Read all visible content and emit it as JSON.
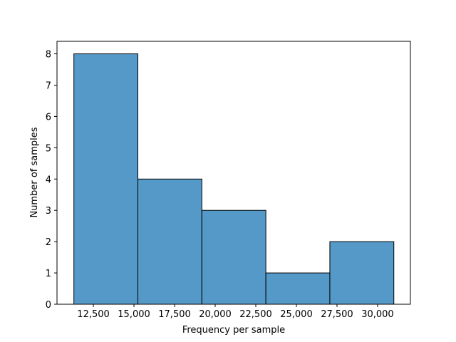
{
  "chart_data": {
    "type": "histogram",
    "xlabel": "Frequency per sample",
    "ylabel": "Number of samples",
    "bins": [
      11300,
      15240,
      19180,
      23120,
      27060,
      31000
    ],
    "values": [
      8,
      4,
      3,
      1,
      2
    ],
    "color": "#5599c8",
    "xlim": [
      10260,
      32020
    ],
    "ylim": [
      0,
      8.4
    ],
    "xticks": [
      {
        "value": 12500,
        "label": "12,500"
      },
      {
        "value": 15000,
        "label": "15,000"
      },
      {
        "value": 17500,
        "label": "17,500"
      },
      {
        "value": 20000,
        "label": "20,000"
      },
      {
        "value": 22500,
        "label": "22,500"
      },
      {
        "value": 25000,
        "label": "25,000"
      },
      {
        "value": 27500,
        "label": "27,500"
      },
      {
        "value": 30000,
        "label": "30,000"
      }
    ],
    "yticks": [
      0,
      1,
      2,
      3,
      4,
      5,
      6,
      7,
      8
    ]
  }
}
